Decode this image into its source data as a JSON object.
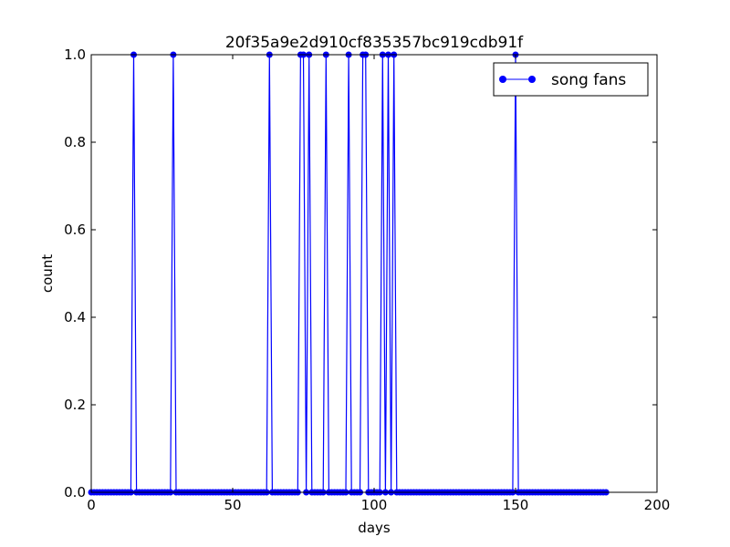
{
  "chart_data": {
    "type": "line",
    "title": "20f35a9e2d910cf835357bc919cdb91f",
    "xlabel": "days",
    "ylabel": "count",
    "xlim": [
      0,
      200
    ],
    "ylim": [
      0.0,
      1.0
    ],
    "xticks": [
      0,
      50,
      100,
      150,
      200
    ],
    "yticks": [
      0.0,
      0.2,
      0.4,
      0.6,
      0.8,
      1.0
    ],
    "ytick_labels": [
      "0.0",
      "0.2",
      "0.4",
      "0.6",
      "0.8",
      "1.0"
    ],
    "grid": false,
    "legend_position": "top-right",
    "series": [
      {
        "name": "song fans",
        "color": "#0000ff",
        "marker": "circle",
        "x_range": [
          0,
          182
        ],
        "x_step": 1,
        "nonzero_x": [
          15,
          29,
          63,
          74,
          75,
          77,
          83,
          91,
          96,
          97,
          103,
          105,
          107,
          150
        ],
        "nonzero_value": 1,
        "default_value": 0
      }
    ]
  }
}
